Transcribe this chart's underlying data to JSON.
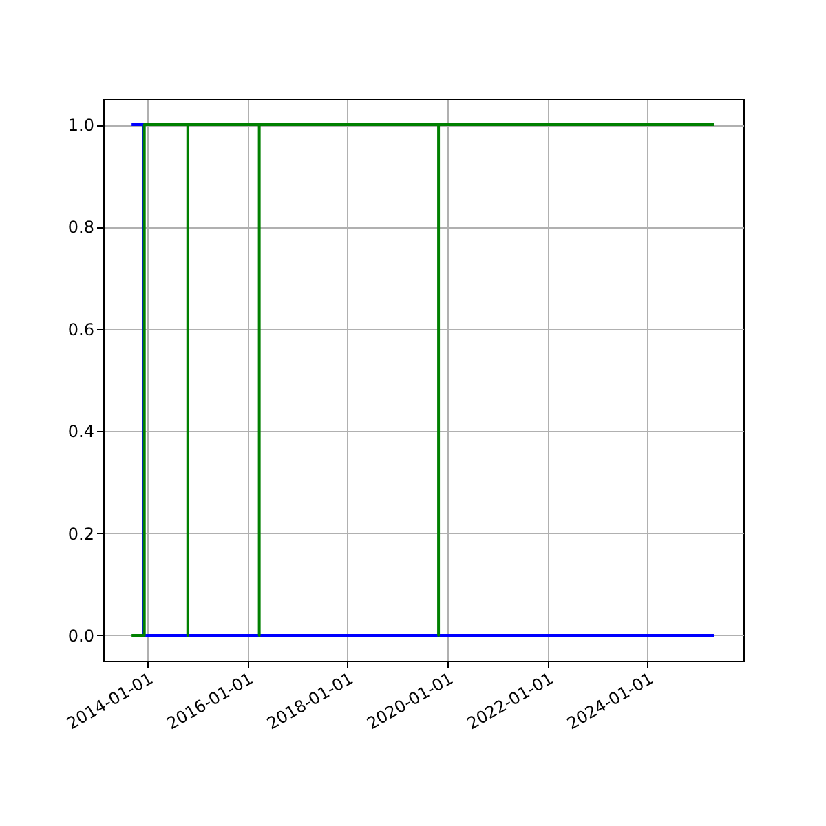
{
  "chart_data": {
    "type": "line",
    "xlim": [
      "2013-02-13",
      "2025-12-01"
    ],
    "ylim": [
      -0.05,
      1.05
    ],
    "xticks": [
      "2014-01-01",
      "2016-01-01",
      "2018-01-01",
      "2020-01-01",
      "2022-01-01",
      "2024-01-01"
    ],
    "yticks": [
      {
        "value": 0,
        "label": "0.0"
      },
      {
        "value": 0.2,
        "label": "0.2"
      },
      {
        "value": 0.4,
        "label": "0.4"
      },
      {
        "value": 0.6,
        "label": "0.6"
      },
      {
        "value": 0.8,
        "label": "0.8"
      },
      {
        "value": 1,
        "label": "1.0"
      }
    ],
    "grid": true,
    "series": [
      {
        "color": "#0000ff",
        "x": [
          "2013-09-08",
          "2013-12-05",
          "2013-12-05",
          "2025-05-01"
        ],
        "values": [
          1,
          1,
          0,
          0
        ]
      },
      {
        "color": "#008000",
        "x": [
          "2013-09-08",
          "2013-12-10",
          "2013-12-10",
          "2014-10-23",
          "2014-10-23",
          "2014-10-23",
          "2016-03-28",
          "2016-03-28",
          "2016-03-28",
          "2019-10-28",
          "2019-10-28",
          "2019-10-28",
          "2025-05-01"
        ],
        "values": [
          0,
          0,
          1,
          1,
          0,
          1,
          1,
          0,
          1,
          1,
          0,
          1,
          1
        ]
      }
    ]
  }
}
